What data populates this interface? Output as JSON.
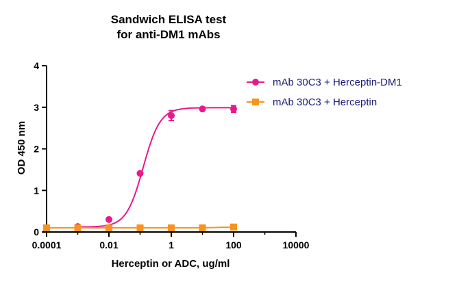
{
  "chart_data": {
    "type": "line",
    "title_lines": [
      "Sandwich ELISA test",
      "for anti-DM1 mAbs"
    ],
    "xlabel": "Herceptin or ADC, ug/ml",
    "ylabel": "OD 450 nm",
    "xscale": "log",
    "xlim": [
      0.0001,
      10000
    ],
    "ylim": [
      0,
      4
    ],
    "xticks": [
      0.0001,
      0.01,
      1,
      100,
      10000
    ],
    "xtick_labels": [
      "0.0001",
      "0.01",
      "1",
      "100",
      "10000"
    ],
    "yticks": [
      0,
      1,
      2,
      3,
      4
    ],
    "ytick_labels": [
      "0",
      "1",
      "2",
      "3",
      "4"
    ],
    "grid": false,
    "legend_position": "top-right",
    "series": [
      {
        "name": "mAb 30C3 + Herceptin-DM1",
        "color": "#e8198b",
        "marker": "circle",
        "x": [
          0.001,
          0.01,
          0.1,
          1,
          10,
          100
        ],
        "y": [
          0.13,
          0.3,
          1.41,
          2.8,
          2.96,
          2.96
        ],
        "err": [
          0,
          0,
          0,
          0.12,
          0,
          0.08
        ],
        "fit": {
          "bottom": 0.12,
          "top": 2.99,
          "log_ec50": -0.9,
          "hill": 1.6
        }
      },
      {
        "name": "mAb 30C3 + Herceptin",
        "color": "#f7941d",
        "marker": "square",
        "x": [
          0.0001,
          0.001,
          0.01,
          0.1,
          1,
          10,
          100
        ],
        "y": [
          0.1,
          0.1,
          0.1,
          0.1,
          0.1,
          0.1,
          0.12
        ],
        "err": [
          0,
          0,
          0,
          0,
          0,
          0,
          0
        ]
      }
    ]
  }
}
